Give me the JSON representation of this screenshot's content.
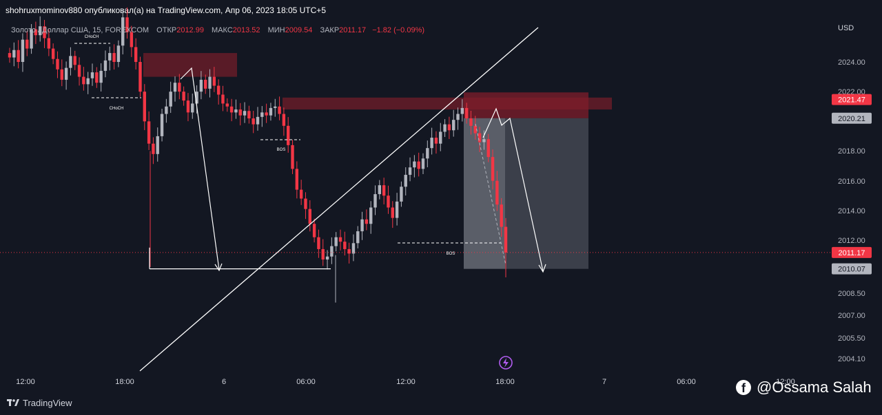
{
  "publisher_line": "shohruxmominov880 опубликовал(а) на TradingView.com, Апр 06, 2023 18:05 UTC+5",
  "legend": {
    "symbol": "Золото / Доллар США, 15, FOREXCOM",
    "open_label": "ОТКР",
    "open": "2012.99",
    "high_label": "МАКС",
    "high": "2013.52",
    "low_label": "МИН",
    "low": "2009.54",
    "close_label": "ЗАКР",
    "close": "2011.17",
    "change": "−1.82 (−0.09%)"
  },
  "currency": "USD",
  "tradingview_label": "TradingView",
  "watermark_text": "@Ossama Salah",
  "colors": {
    "up": "#b2b5be",
    "down": "#f23645",
    "zone": "#7f1d2b",
    "background": "#131722"
  },
  "chart_data": {
    "type": "candlestick",
    "symbol": "Золото / Доллар США",
    "interval": "15",
    "x_ticks": [
      "12:00",
      "18:00",
      "6",
      "06:00",
      "12:00",
      "18:00",
      "7",
      "06:00",
      "12:00"
    ],
    "y_ticks": [
      2024.0,
      2022.0,
      2018.0,
      2016.0,
      2014.0,
      2012.0,
      2008.5,
      2007.0,
      2005.5,
      2004.1
    ],
    "y_tick_labels": [
      "2024.00",
      "2022.00",
      "2018.00",
      "2016.00",
      "2014.00",
      "2012.00",
      "2008.50",
      "2007.00",
      "2005.50",
      "2004.10"
    ],
    "price_labels": [
      {
        "value": 2021.47,
        "text": "2021.47",
        "style": "red"
      },
      {
        "value": 2020.21,
        "text": "2020.21",
        "style": "gray"
      },
      {
        "value": 2011.17,
        "text": "2011.17",
        "style": "red"
      },
      {
        "value": 2010.07,
        "text": "2010.07",
        "style": "gray"
      }
    ],
    "closes": [
      2024.3,
      2024.8,
      2024.0,
      2025.5,
      2024.9,
      2026.2,
      2025.8,
      2026.4,
      2025.6,
      2024.9,
      2024.2,
      2023.5,
      2022.8,
      2023.6,
      2024.4,
      2023.8,
      2023.0,
      2022.5,
      2022.9,
      2023.3,
      2022.6,
      2023.4,
      2024.1,
      2024.6,
      2024.0,
      2025.1,
      2027.0,
      2026.0,
      2025.0,
      2024.0,
      2022.0,
      2020.0,
      2018.5,
      2017.8,
      2019.0,
      2020.5,
      2021.0,
      2022.0,
      2022.6,
      2022.0,
      2021.4,
      2020.6,
      2021.2,
      2022.0,
      2022.8,
      2022.2,
      2023.0,
      2022.4,
      2021.8,
      2021.2,
      2021.0,
      2020.6,
      2020.8,
      2020.4,
      2020.7,
      2020.2,
      2019.8,
      2020.3,
      2020.6,
      2020.4,
      2020.9,
      2021.0,
      2020.5,
      2019.7,
      2018.4,
      2016.8,
      2015.4,
      2014.8,
      2014.1,
      2013.1,
      2012.2,
      2011.4,
      2010.7,
      2010.9,
      2011.6,
      2012.2,
      2011.9,
      2011.4,
      2011.1,
      2011.8,
      2012.6,
      2013.4,
      2013.1,
      2014.2,
      2015.1,
      2015.7,
      2015.0,
      2014.2,
      2013.5,
      2014.6,
      2015.6,
      2016.4,
      2016.9,
      2017.3,
      2016.8,
      2017.5,
      2018.2,
      2018.9,
      2018.5,
      2019.3,
      2019.8,
      2019.4,
      2020.1,
      2020.5,
      2020.9,
      2020.2,
      2019.7,
      2019.2,
      2018.6,
      2018.8,
      2017.6,
      2016.0,
      2014.4,
      2012.9,
      2011.17
    ],
    "zones": [
      {
        "y_top": 2024.6,
        "y_bottom": 2023.0,
        "label": ""
      },
      {
        "y_top": 2021.6,
        "y_bottom": 2020.8,
        "label": ""
      },
      {
        "y_top": 2021.95,
        "y_bottom": 2020.21,
        "label": ""
      }
    ],
    "annotations": [
      "CHoCH",
      "CHoCH",
      "BOS",
      "BOS"
    ],
    "position": {
      "entry": 2020.21,
      "stop": 2021.47,
      "target": 2010.07
    }
  }
}
